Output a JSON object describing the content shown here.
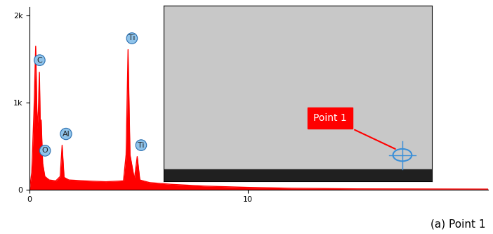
{
  "chart_data": {
    "type": "area",
    "x": [
      0.0,
      0.1,
      0.2,
      0.28,
      0.35,
      0.4,
      0.45,
      0.5,
      0.53,
      0.6,
      0.7,
      0.9,
      1.2,
      1.4,
      1.49,
      1.58,
      1.8,
      2.5,
      3.5,
      4.3,
      4.42,
      4.51,
      4.6,
      4.8,
      4.93,
      5.05,
      5.5,
      6.5,
      8,
      10,
      12,
      15,
      21
    ],
    "values": [
      0,
      200,
      900,
      1650,
      700,
      900,
      1350,
      600,
      800,
      300,
      150,
      110,
      100,
      150,
      510,
      140,
      110,
      100,
      90,
      100,
      400,
      1610,
      400,
      120,
      380,
      110,
      80,
      60,
      40,
      25,
      15,
      8,
      5
    ],
    "color": "#ff0000",
    "xlim": [
      0,
      21
    ],
    "xticks": [
      0,
      10
    ],
    "ylim": [
      0,
      2100
    ],
    "yticks": [
      0,
      {
        "value": 1000,
        "label": "1k"
      },
      {
        "value": 2000,
        "label": "2k"
      }
    ],
    "peak_labels": [
      {
        "label": "C",
        "x": 0.28
      },
      {
        "label": "O",
        "x": 0.53
      },
      {
        "label": "Al",
        "x": 1.49
      },
      {
        "label": "Ti",
        "x": 4.51
      },
      {
        "label": "Ti",
        "x": 4.93
      }
    ],
    "inset": {
      "callout": "Point 1"
    },
    "caption": "(a) Point 1"
  }
}
